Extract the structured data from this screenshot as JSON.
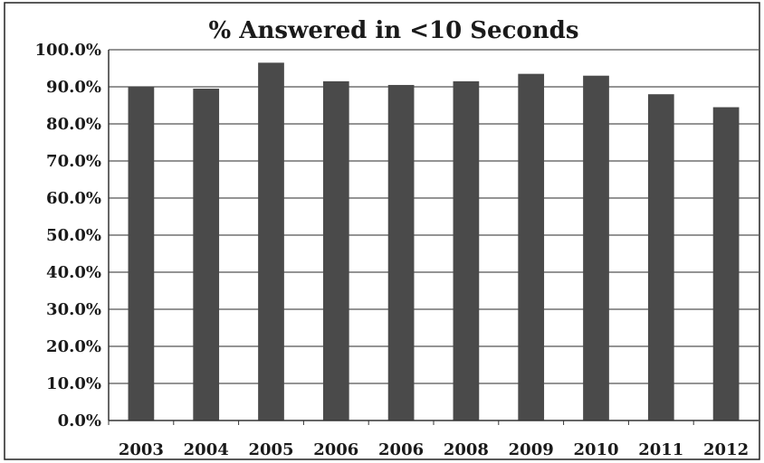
{
  "chart_data": {
    "type": "bar",
    "title": "% Answered in <10 Seconds",
    "xlabel": "",
    "ylabel": "",
    "categories": [
      "2003",
      "2004",
      "2005",
      "2006",
      "2006",
      "2008",
      "2009",
      "2010",
      "2011",
      "2012"
    ],
    "values": [
      90.0,
      89.5,
      96.5,
      91.5,
      90.5,
      91.5,
      93.5,
      93.0,
      88.0,
      84.5
    ],
    "ylim": [
      0,
      100
    ],
    "y_ticks": [
      "0.0%",
      "10.0%",
      "20.0%",
      "30.0%",
      "40.0%",
      "50.0%",
      "60.0%",
      "70.0%",
      "80.0%",
      "90.0%",
      "100.0%"
    ],
    "y_tick_values": [
      0,
      10,
      20,
      30,
      40,
      50,
      60,
      70,
      80,
      90,
      100
    ],
    "grid": true,
    "legend": "none",
    "colors": {
      "bar": "#4a4a4a",
      "gridline": "#555555",
      "axis": "#333333",
      "border": "#222222"
    }
  }
}
